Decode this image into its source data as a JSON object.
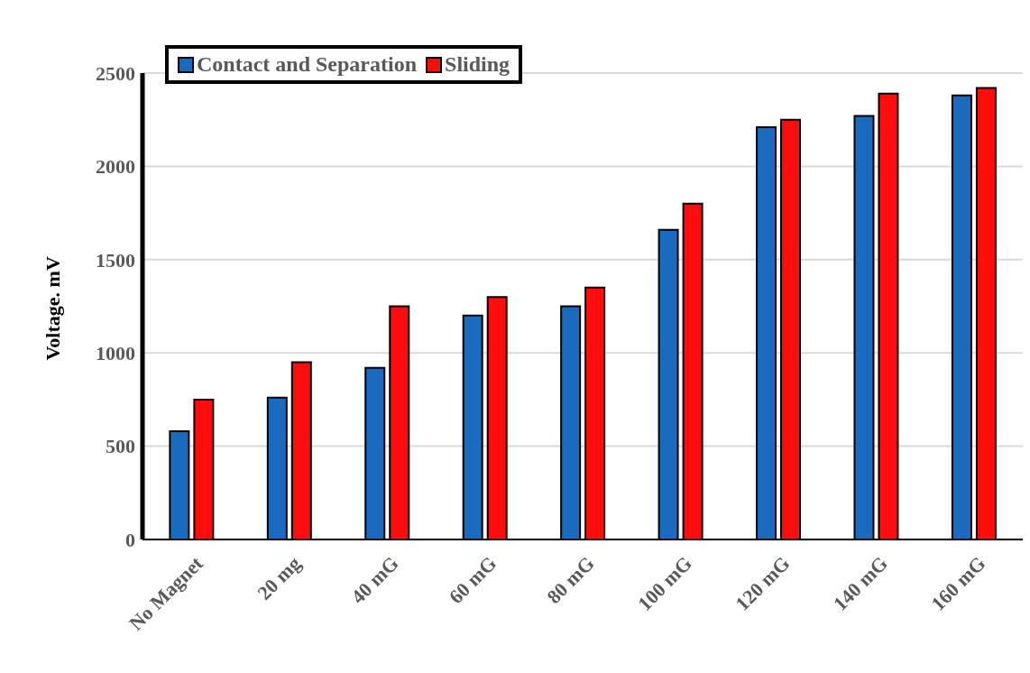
{
  "chart_data": {
    "type": "bar",
    "ylabel": "Voltage. mV",
    "categories": [
      "No Magnet",
      "20 mg",
      "40 mG",
      "60 mG",
      "80 mG",
      "100 mG",
      "120 mG",
      "140 mG",
      "160 mG"
    ],
    "series": [
      {
        "name": "Contact and Separation",
        "color": "#1a6bbd",
        "values": [
          580,
          760,
          920,
          1200,
          1250,
          1660,
          2210,
          2270,
          2380
        ]
      },
      {
        "name": "Sliding",
        "color": "#ff0d0d",
        "values": [
          750,
          950,
          1250,
          1300,
          1350,
          1800,
          2250,
          2390,
          2420
        ]
      }
    ],
    "ylim": [
      0,
      2500
    ],
    "yticks": [
      0,
      500,
      1000,
      1500,
      2000,
      2500
    ],
    "grid": "y",
    "legend": "top left"
  }
}
